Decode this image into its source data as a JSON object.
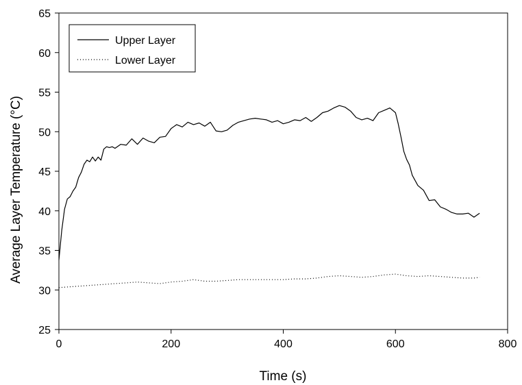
{
  "chart_data": {
    "type": "line",
    "title": "",
    "xlabel": "Time (s)",
    "ylabel": "Average Layer Temperature (°C)",
    "xlim": [
      0,
      800
    ],
    "ylim": [
      25,
      65
    ],
    "xticks": [
      "0",
      "200",
      "400",
      "600",
      "800"
    ],
    "yticks": [
      "25",
      "30",
      "35",
      "40",
      "45",
      "50",
      "55",
      "60",
      "65"
    ],
    "grid": false,
    "legend_position": "top-left",
    "series": [
      {
        "name": "Upper Layer",
        "style": "solid",
        "color": "#000000",
        "x": [
          0,
          5,
          10,
          15,
          20,
          25,
          30,
          35,
          40,
          45,
          50,
          55,
          60,
          65,
          70,
          75,
          80,
          85,
          90,
          95,
          100,
          110,
          120,
          130,
          140,
          150,
          160,
          170,
          180,
          190,
          200,
          210,
          220,
          230,
          240,
          250,
          260,
          270,
          280,
          290,
          300,
          310,
          320,
          330,
          340,
          350,
          360,
          370,
          380,
          390,
          400,
          410,
          420,
          430,
          440,
          450,
          460,
          470,
          480,
          490,
          500,
          510,
          520,
          530,
          540,
          550,
          560,
          570,
          580,
          590,
          600,
          605,
          610,
          615,
          620,
          625,
          630,
          640,
          650,
          660,
          670,
          680,
          690,
          700,
          710,
          720,
          730,
          740,
          750
        ],
        "y": [
          33.8,
          37.5,
          40.2,
          41.5,
          41.8,
          42.5,
          43.0,
          44.2,
          44.9,
          45.9,
          46.4,
          46.2,
          46.8,
          46.3,
          46.8,
          46.4,
          47.8,
          48.1,
          48.0,
          48.1,
          47.9,
          48.4,
          48.3,
          49.1,
          48.4,
          49.2,
          48.8,
          48.6,
          49.3,
          49.4,
          50.4,
          50.9,
          50.6,
          51.2,
          50.9,
          51.1,
          50.7,
          51.2,
          50.1,
          50.0,
          50.2,
          50.8,
          51.2,
          51.4,
          51.6,
          51.7,
          51.6,
          51.5,
          51.2,
          51.4,
          51.0,
          51.2,
          51.5,
          51.4,
          51.8,
          51.3,
          51.8,
          52.4,
          52.6,
          53.0,
          53.3,
          53.1,
          52.6,
          51.8,
          51.5,
          51.7,
          51.4,
          52.4,
          52.7,
          53.0,
          52.4,
          51.0,
          49.3,
          47.5,
          46.5,
          45.8,
          44.5,
          43.2,
          42.6,
          41.3,
          41.4,
          40.5,
          40.2,
          39.8,
          39.6,
          39.6,
          39.7,
          39.2,
          39.7
        ]
      },
      {
        "name": "Lower Layer",
        "style": "dotted",
        "color": "#000000",
        "x": [
          0,
          20,
          40,
          60,
          80,
          100,
          120,
          140,
          160,
          180,
          200,
          220,
          240,
          260,
          280,
          300,
          320,
          340,
          360,
          380,
          400,
          420,
          440,
          460,
          480,
          500,
          520,
          540,
          560,
          580,
          600,
          620,
          640,
          660,
          680,
          700,
          720,
          740,
          750
        ],
        "y": [
          30.3,
          30.4,
          30.5,
          30.6,
          30.7,
          30.8,
          30.9,
          31.0,
          30.9,
          30.8,
          31.0,
          31.1,
          31.3,
          31.1,
          31.1,
          31.2,
          31.3,
          31.3,
          31.3,
          31.3,
          31.3,
          31.4,
          31.4,
          31.5,
          31.7,
          31.8,
          31.7,
          31.6,
          31.7,
          31.9,
          32.0,
          31.8,
          31.7,
          31.8,
          31.7,
          31.6,
          31.5,
          31.5,
          31.6
        ]
      }
    ]
  }
}
